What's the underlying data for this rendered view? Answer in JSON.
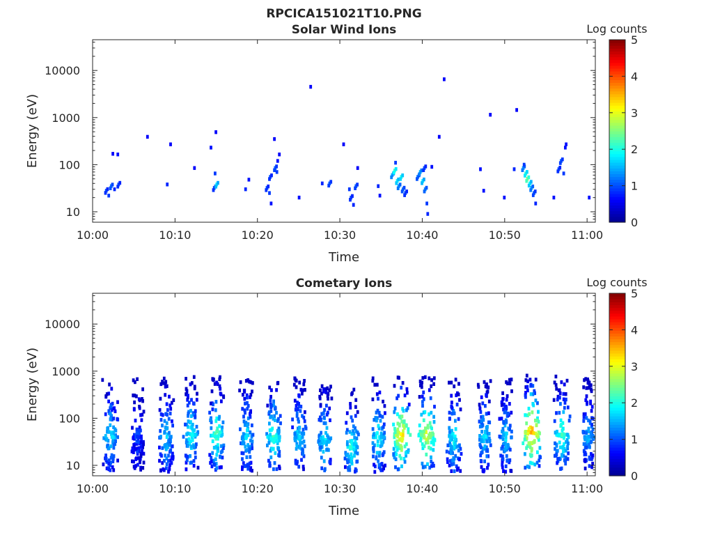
{
  "figure_title": "RPCICA151021T10.PNG",
  "colorbar_label": "Log counts",
  "colormap": [
    "#00008f",
    "#0000ff",
    "#0080ff",
    "#00ffff",
    "#80ff80",
    "#ffff00",
    "#ff8000",
    "#ff0000",
    "#800000"
  ],
  "chart_data": [
    {
      "type": "heatmap",
      "title": "Solar Wind Ions",
      "xlabel": "Time",
      "ylabel": "Energy (eV)",
      "x_ticks": [
        "10:00",
        "10:10",
        "10:20",
        "10:30",
        "10:40",
        "10:50",
        "11:00"
      ],
      "x_range_minutes": [
        0,
        61
      ],
      "y_scale": "log",
      "y_ticks": [
        "10",
        "100",
        "1000",
        "10000"
      ],
      "y_range": [
        6,
        45000
      ],
      "color_range": [
        0,
        5
      ],
      "colorbar_ticks": [
        "0",
        "1",
        "2",
        "3",
        "4",
        "5"
      ],
      "points": [
        {
          "t": 1.5,
          "e": 28,
          "v": 1.0
        },
        {
          "t": 1.8,
          "e": 22,
          "v": 0.9
        },
        {
          "t": 2.1,
          "e": 35,
          "v": 1.2
        },
        {
          "t": 2.5,
          "e": 30,
          "v": 0.8
        },
        {
          "t": 3.0,
          "e": 38,
          "v": 1.0
        },
        {
          "t": 2.3,
          "e": 170,
          "v": 0.6
        },
        {
          "t": 2.9,
          "e": 165,
          "v": 0.7
        },
        {
          "t": 6.5,
          "e": 390,
          "v": 0.6
        },
        {
          "t": 9.3,
          "e": 270,
          "v": 0.6
        },
        {
          "t": 8.9,
          "e": 38,
          "v": 0.8
        },
        {
          "t": 12.2,
          "e": 85,
          "v": 0.6
        },
        {
          "t": 14.2,
          "e": 230,
          "v": 0.7
        },
        {
          "t": 14.8,
          "e": 490,
          "v": 0.6
        },
        {
          "t": 14.6,
          "e": 32,
          "v": 1.0
        },
        {
          "t": 14.9,
          "e": 38,
          "v": 1.8
        },
        {
          "t": 14.7,
          "e": 65,
          "v": 0.9
        },
        {
          "t": 18.4,
          "e": 30,
          "v": 0.8
        },
        {
          "t": 18.8,
          "e": 48,
          "v": 0.7
        },
        {
          "t": 21.0,
          "e": 32,
          "v": 1.0
        },
        {
          "t": 21.3,
          "e": 25,
          "v": 0.9
        },
        {
          "t": 21.4,
          "e": 55,
          "v": 1.0
        },
        {
          "t": 21.5,
          "e": 15,
          "v": 0.7
        },
        {
          "t": 22.0,
          "e": 85,
          "v": 1.1
        },
        {
          "t": 22.2,
          "e": 70,
          "v": 0.9
        },
        {
          "t": 22.3,
          "e": 120,
          "v": 0.7
        },
        {
          "t": 21.9,
          "e": 350,
          "v": 0.6
        },
        {
          "t": 22.5,
          "e": 165,
          "v": 0.6
        },
        {
          "t": 24.9,
          "e": 20,
          "v": 0.7
        },
        {
          "t": 26.3,
          "e": 4500,
          "v": 0.6
        },
        {
          "t": 27.7,
          "e": 40,
          "v": 0.8
        },
        {
          "t": 28.6,
          "e": 40,
          "v": 1.1
        },
        {
          "t": 30.3,
          "e": 270,
          "v": 0.6
        },
        {
          "t": 31.0,
          "e": 30,
          "v": 0.9
        },
        {
          "t": 31.2,
          "e": 20,
          "v": 1.0
        },
        {
          "t": 31.5,
          "e": 14,
          "v": 0.8
        },
        {
          "t": 31.8,
          "e": 35,
          "v": 1.1
        },
        {
          "t": 32.0,
          "e": 85,
          "v": 0.6
        },
        {
          "t": 34.5,
          "e": 35,
          "v": 0.8
        },
        {
          "t": 34.7,
          "e": 22,
          "v": 0.7
        },
        {
          "t": 36.2,
          "e": 60,
          "v": 1.5
        },
        {
          "t": 36.5,
          "e": 75,
          "v": 2.2
        },
        {
          "t": 36.8,
          "e": 45,
          "v": 1.9
        },
        {
          "t": 37.0,
          "e": 35,
          "v": 1.4
        },
        {
          "t": 37.3,
          "e": 55,
          "v": 2.0
        },
        {
          "t": 37.5,
          "e": 30,
          "v": 1.2
        },
        {
          "t": 37.8,
          "e": 25,
          "v": 1.0
        },
        {
          "t": 36.6,
          "e": 110,
          "v": 0.9
        },
        {
          "t": 39.3,
          "e": 55,
          "v": 1.2
        },
        {
          "t": 39.6,
          "e": 70,
          "v": 1.5
        },
        {
          "t": 39.9,
          "e": 45,
          "v": 1.8
        },
        {
          "t": 40.2,
          "e": 30,
          "v": 1.3
        },
        {
          "t": 40.4,
          "e": 15,
          "v": 0.9
        },
        {
          "t": 40.5,
          "e": 9,
          "v": 0.8
        },
        {
          "t": 40.6,
          "e": 6.5,
          "v": 0.7
        },
        {
          "t": 40.1,
          "e": 85,
          "v": 1.0
        },
        {
          "t": 41.0,
          "e": 90,
          "v": 0.7
        },
        {
          "t": 41.9,
          "e": 390,
          "v": 0.6
        },
        {
          "t": 42.5,
          "e": 6500,
          "v": 0.6
        },
        {
          "t": 46.9,
          "e": 80,
          "v": 0.7
        },
        {
          "t": 47.3,
          "e": 28,
          "v": 0.7
        },
        {
          "t": 48.1,
          "e": 1150,
          "v": 0.6
        },
        {
          "t": 49.8,
          "e": 20,
          "v": 0.7
        },
        {
          "t": 51.0,
          "e": 80,
          "v": 0.8
        },
        {
          "t": 51.3,
          "e": 1450,
          "v": 0.6
        },
        {
          "t": 52.1,
          "e": 85,
          "v": 1.4
        },
        {
          "t": 52.4,
          "e": 65,
          "v": 2.1
        },
        {
          "t": 52.6,
          "e": 50,
          "v": 2.6
        },
        {
          "t": 52.9,
          "e": 40,
          "v": 1.9
        },
        {
          "t": 53.1,
          "e": 32,
          "v": 1.4
        },
        {
          "t": 53.4,
          "e": 25,
          "v": 1.1
        },
        {
          "t": 53.6,
          "e": 15,
          "v": 0.8
        },
        {
          "t": 52.2,
          "e": 100,
          "v": 0.9
        },
        {
          "t": 55.8,
          "e": 20,
          "v": 0.7
        },
        {
          "t": 56.4,
          "e": 80,
          "v": 1.0
        },
        {
          "t": 56.7,
          "e": 120,
          "v": 1.1
        },
        {
          "t": 57.0,
          "e": 65,
          "v": 0.9
        },
        {
          "t": 57.2,
          "e": 230,
          "v": 0.7
        },
        {
          "t": 57.3,
          "e": 270,
          "v": 0.7
        },
        {
          "t": 60.1,
          "e": 20,
          "v": 0.7
        }
      ]
    },
    {
      "type": "heatmap",
      "title": "Cometary Ions",
      "xlabel": "Time",
      "ylabel": "Energy (eV)",
      "x_ticks": [
        "10:00",
        "10:10",
        "10:20",
        "10:30",
        "10:40",
        "10:50",
        "11:00"
      ],
      "x_range_minutes": [
        0,
        61
      ],
      "y_scale": "log",
      "y_ticks": [
        "10",
        "100",
        "1000",
        "10000"
      ],
      "y_range": [
        6,
        45000
      ],
      "color_range": [
        0,
        5
      ],
      "colorbar_ticks": [
        "0",
        "1",
        "2",
        "3",
        "4",
        "5"
      ],
      "bursts": [
        {
          "t": 2.0,
          "e": 40,
          "v": 1.8,
          "w": 1.6
        },
        {
          "t": 5.3,
          "e": 40,
          "v": 1.0,
          "w": 1.2
        },
        {
          "t": 8.8,
          "e": 40,
          "v": 1.7,
          "w": 1.5
        },
        {
          "t": 11.8,
          "e": 45,
          "v": 2.0,
          "w": 1.5
        },
        {
          "t": 14.9,
          "e": 45,
          "v": 2.3,
          "w": 1.5
        },
        {
          "t": 18.5,
          "e": 40,
          "v": 1.8,
          "w": 1.4
        },
        {
          "t": 21.8,
          "e": 40,
          "v": 2.2,
          "w": 1.6
        },
        {
          "t": 24.9,
          "e": 40,
          "v": 1.8,
          "w": 1.4
        },
        {
          "t": 28.0,
          "e": 35,
          "v": 1.9,
          "w": 1.4
        },
        {
          "t": 31.3,
          "e": 25,
          "v": 2.1,
          "w": 1.4
        },
        {
          "t": 34.5,
          "e": 40,
          "v": 2.0,
          "w": 1.4
        },
        {
          "t": 37.3,
          "e": 45,
          "v": 3.3,
          "w": 1.8
        },
        {
          "t": 40.4,
          "e": 45,
          "v": 3.0,
          "w": 1.8
        },
        {
          "t": 43.7,
          "e": 40,
          "v": 2.0,
          "w": 1.4
        },
        {
          "t": 47.4,
          "e": 40,
          "v": 1.8,
          "w": 1.3
        },
        {
          "t": 50.0,
          "e": 40,
          "v": 1.7,
          "w": 1.3
        },
        {
          "t": 53.1,
          "e": 50,
          "v": 3.6,
          "w": 1.9
        },
        {
          "t": 56.8,
          "e": 45,
          "v": 2.3,
          "w": 1.6
        },
        {
          "t": 60.0,
          "e": 40,
          "v": 1.6,
          "w": 1.2
        }
      ]
    }
  ]
}
